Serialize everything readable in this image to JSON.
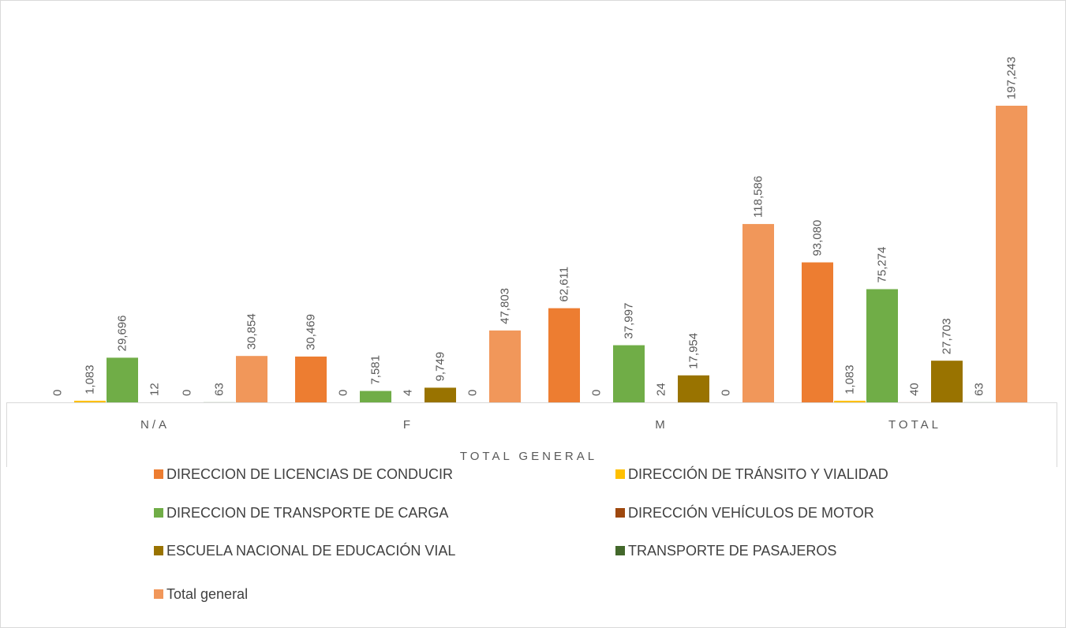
{
  "chart_data": {
    "type": "bar",
    "categories": [
      "N/A",
      "F",
      "M",
      "TOTAL"
    ],
    "x_group_label": "TOTAL GENERAL",
    "series": [
      {
        "name": "DIRECCION DE LICENCIAS DE CONDUCIR",
        "color": "#ED7D31",
        "values": [
          0,
          30469,
          62611,
          93080
        ],
        "value_labels": [
          "0",
          "30,469",
          "62,611",
          "93,080"
        ]
      },
      {
        "name": "DIRECCIÓN DE TRÁNSITO Y VIALIDAD",
        "color": "#FFC000",
        "values": [
          1083,
          0,
          0,
          1083
        ],
        "value_labels": [
          "1,083",
          "0",
          "0",
          "1,083"
        ]
      },
      {
        "name": "DIRECCION DE TRANSPORTE DE CARGA",
        "color": "#70AD47",
        "values": [
          29696,
          7581,
          37997,
          75274
        ],
        "value_labels": [
          "29,696",
          "7,581",
          "37,997",
          "75,274"
        ]
      },
      {
        "name": "DIRECCIÓN VEHÍCULOS DE MOTOR",
        "color": "#9E480E",
        "values": [
          12,
          4,
          24,
          40
        ],
        "value_labels": [
          "12",
          "4",
          "24",
          "40"
        ]
      },
      {
        "name": "ESCUELA NACIONAL DE EDUCACIÓN VIAL",
        "color": "#997300",
        "values": [
          0,
          9749,
          17954,
          27703
        ],
        "value_labels": [
          "0",
          "9,749",
          "17,954",
          "27,703"
        ]
      },
      {
        "name": "TRANSPORTE DE PASAJEROS",
        "color": "#43682B",
        "values": [
          63,
          0,
          0,
          63
        ],
        "value_labels": [
          "63",
          "0",
          "0",
          "63"
        ]
      },
      {
        "name": "Total general",
        "color": "#F1975A",
        "values": [
          30854,
          47803,
          118586,
          197243
        ],
        "value_labels": [
          "30,854",
          "47,803",
          "118,586",
          "197,243"
        ]
      }
    ]
  }
}
